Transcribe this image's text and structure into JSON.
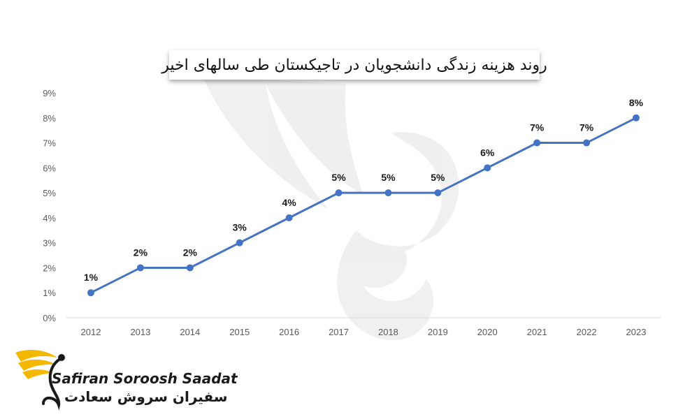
{
  "chart_data": {
    "type": "line",
    "title": "روند هزینه زندگی دانشجویان در تاجیکستان طی سالهای اخیر",
    "categories": [
      "2012",
      "2013",
      "2014",
      "2015",
      "2016",
      "2017",
      "2018",
      "2019",
      "2020",
      "2021",
      "2022",
      "2023"
    ],
    "series": [
      {
        "values": [
          1,
          2,
          2,
          3,
          4,
          5,
          5,
          5,
          6,
          7,
          7,
          8
        ]
      }
    ],
    "data_labels": [
      "1%",
      "2%",
      "2%",
      "3%",
      "4%",
      "5%",
      "5%",
      "5%",
      "6%",
      "7%",
      "7%",
      "8%"
    ],
    "y_ticks": [
      "0%",
      "1%",
      "2%",
      "3%",
      "4%",
      "5%",
      "6%",
      "7%",
      "8%",
      "9%"
    ],
    "ylim": [
      0,
      9
    ],
    "xlabel": "",
    "ylabel": "",
    "grid": false,
    "line_color": "#4472c4"
  },
  "logo": {
    "brand_en": "Safiran Soroosh Saadat",
    "brand_fa": "سفیران سروش سعادت",
    "accent_color": "#f5b800"
  }
}
